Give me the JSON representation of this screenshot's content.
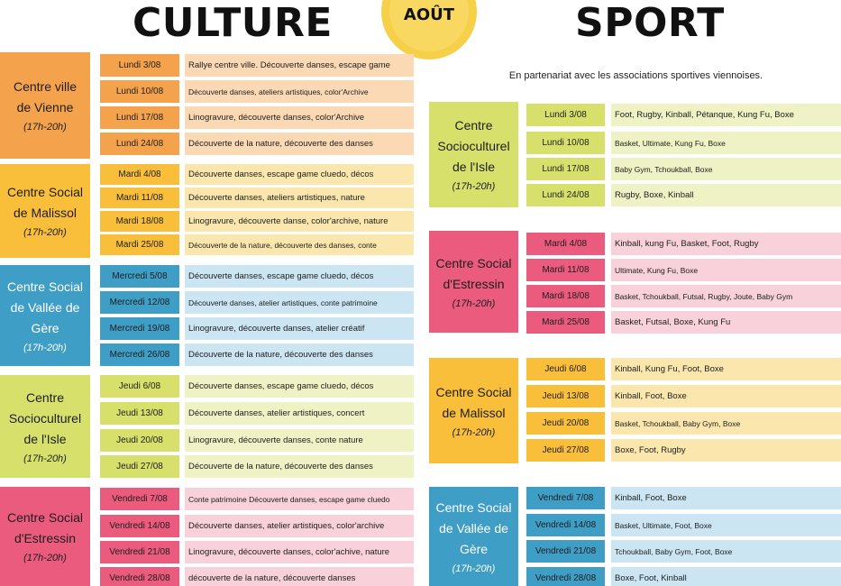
{
  "header": {
    "culture_title": "CULTURE",
    "month_badge": "AOÛT",
    "sport_title": "SPORT",
    "sport_partner_note": "En partenariat avec les associations sportives viennoises."
  },
  "colors": {
    "orange": "#f4a34c",
    "orange_light": "#fbd9b5",
    "yellow": "#f9bf3b",
    "yellow_light": "#fbe7ad",
    "blue": "#3f9ec6",
    "blue_light": "#cbe6f2",
    "green": "#d8e06c",
    "green_light": "#eef2c4",
    "pink": "#eb5b7e",
    "pink_light": "#f8d1da",
    "sun": "#f7d04a"
  },
  "culture": [
    {
      "center_lines": [
        "Centre ville",
        "de Vienne"
      ],
      "hours": "(17h-20h)",
      "rows": [
        {
          "date": "Lundi 3/08",
          "activity": "Rallye centre ville. Découverte danses, escape game"
        },
        {
          "date": "Lundi 10/08",
          "activity": "Découverte danses, ateliers artistiques, color'Archive"
        },
        {
          "date": "Lundi 17/08",
          "activity": "Linogravure, découverte danses, color'Archive"
        },
        {
          "date": "Lundi 24/08",
          "activity": "Découverte de la nature, découverte des danses"
        }
      ]
    },
    {
      "center_lines": [
        "Centre Social",
        "de Malissol"
      ],
      "hours": "(17h-20h)",
      "rows": [
        {
          "date": "Mardi 4/08",
          "activity": "Découverte danses, escape game cluedo, décos"
        },
        {
          "date": "Mardi 11/08",
          "activity": "Découverte danses, ateliers artistiques, nature"
        },
        {
          "date": "Mardi 18/08",
          "activity": "Linogravure, découverte danse, color'archive, nature"
        },
        {
          "date": "Mardi 25/08",
          "activity": "Découverte de la nature, découverte des danses, conte"
        }
      ]
    },
    {
      "center_lines": [
        "Centre Social",
        "de Vallée de",
        "Gère"
      ],
      "hours": "(17h-20h)",
      "rows": [
        {
          "date": "Mercredi 5/08",
          "activity": "Découverte danses, escape game cluedo, décos"
        },
        {
          "date": "Mercredi 12/08",
          "activity": "Découverte danses, atelier artistiques, conte patrimoine"
        },
        {
          "date": "Mercredi 19/08",
          "activity": "Linogravure, découverte danses, atelier créatif"
        },
        {
          "date": "Mercredi 26/08",
          "activity": "Découverte de la nature, découverte des danses"
        }
      ]
    },
    {
      "center_lines": [
        "Centre",
        "Socioculturel",
        "de l'Isle"
      ],
      "hours": "(17h-20h)",
      "rows": [
        {
          "date": "Jeudi 6/08",
          "activity": "Découverte danses, escape game cluedo, décos"
        },
        {
          "date": "Jeudi 13/08",
          "activity": "Découverte danses, atelier artistiques, concert"
        },
        {
          "date": "Jeudi 20/08",
          "activity": "Linogravure, découverte danses, conte nature"
        },
        {
          "date": "Jeudi 27/08",
          "activity": "Découverte de la nature, découverte des danses"
        }
      ]
    },
    {
      "center_lines": [
        "Centre Social",
        "d'Estressin"
      ],
      "hours": "(17h-20h)",
      "rows": [
        {
          "date": "Vendredi 7/08",
          "activity": "Conte patrimoine Découverte danses, escape game cluedo"
        },
        {
          "date": "Vendredi 14/08",
          "activity": "Découverte danses, atelier artistiques, color'archive"
        },
        {
          "date": "Vendredi 21/08",
          "activity": "Linogravure, découverte danses, color'achive, nature"
        },
        {
          "date": "Vendredi 28/08",
          "activity": "découverte de la nature, découverte danses"
        }
      ]
    }
  ],
  "sport": [
    {
      "center_lines": [
        "Centre",
        "Socioculturel",
        "de l'Isle"
      ],
      "hours": "(17h-20h)",
      "rows": [
        {
          "date": "Lundi 3/08",
          "activity": "Foot, Rugby, Kinball, Pétanque, Kung Fu, Boxe"
        },
        {
          "date": "Lundi 10/08",
          "activity": "Basket, Ultimate, Kung Fu, Boxe"
        },
        {
          "date": "Lundi 17/08",
          "activity": "Baby Gym, Tchoukball, Boxe"
        },
        {
          "date": "Lundi 24/08",
          "activity": "Rugby, Boxe, Kinball"
        }
      ]
    },
    {
      "center_lines": [
        "Centre Social",
        "d'Estressin"
      ],
      "hours": "(17h-20h)",
      "rows": [
        {
          "date": "Mardi 4/08",
          "activity": "Kinball, kung Fu, Basket, Foot, Rugby"
        },
        {
          "date": "Mardi 11/08",
          "activity": "Ultimate, Kung Fu, Boxe"
        },
        {
          "date": "Mardi 18/08",
          "activity": "Basket, Tchoukball, Futsal, Rugby, Joute, Baby Gym"
        },
        {
          "date": "Mardi 25/08",
          "activity": "Basket, Futsal, Boxe, Kung Fu"
        }
      ]
    },
    {
      "center_lines": [
        "Centre Social",
        "de Malissol"
      ],
      "hours": "(17h-20h)",
      "rows": [
        {
          "date": "Jeudi 6/08",
          "activity": "Kinball, Kung Fu, Foot, Boxe"
        },
        {
          "date": "Jeudi 13/08",
          "activity": "Kinball, Foot, Boxe"
        },
        {
          "date": "Jeudi 20/08",
          "activity": "Basket, Tchoukball, Baby Gym, Boxe"
        },
        {
          "date": "Jeudi 27/08",
          "activity": "Boxe, Foot, Rugby"
        }
      ]
    },
    {
      "center_lines": [
        "Centre Social",
        "de Vallée de",
        "Gère"
      ],
      "hours": "(17h-20h)",
      "rows": [
        {
          "date": "Vendredi 7/08",
          "activity": "Kinball, Foot, Boxe"
        },
        {
          "date": "Vendredi 14/08",
          "activity": "Basket, Ultimate, Foot, Boxe"
        },
        {
          "date": "Vendredi 21/08",
          "activity": "Tchoukball, Baby Gym, Foot, Boxe"
        },
        {
          "date": "Vendredi 28/08",
          "activity": "Boxe, Foot, Kinball"
        }
      ]
    }
  ]
}
